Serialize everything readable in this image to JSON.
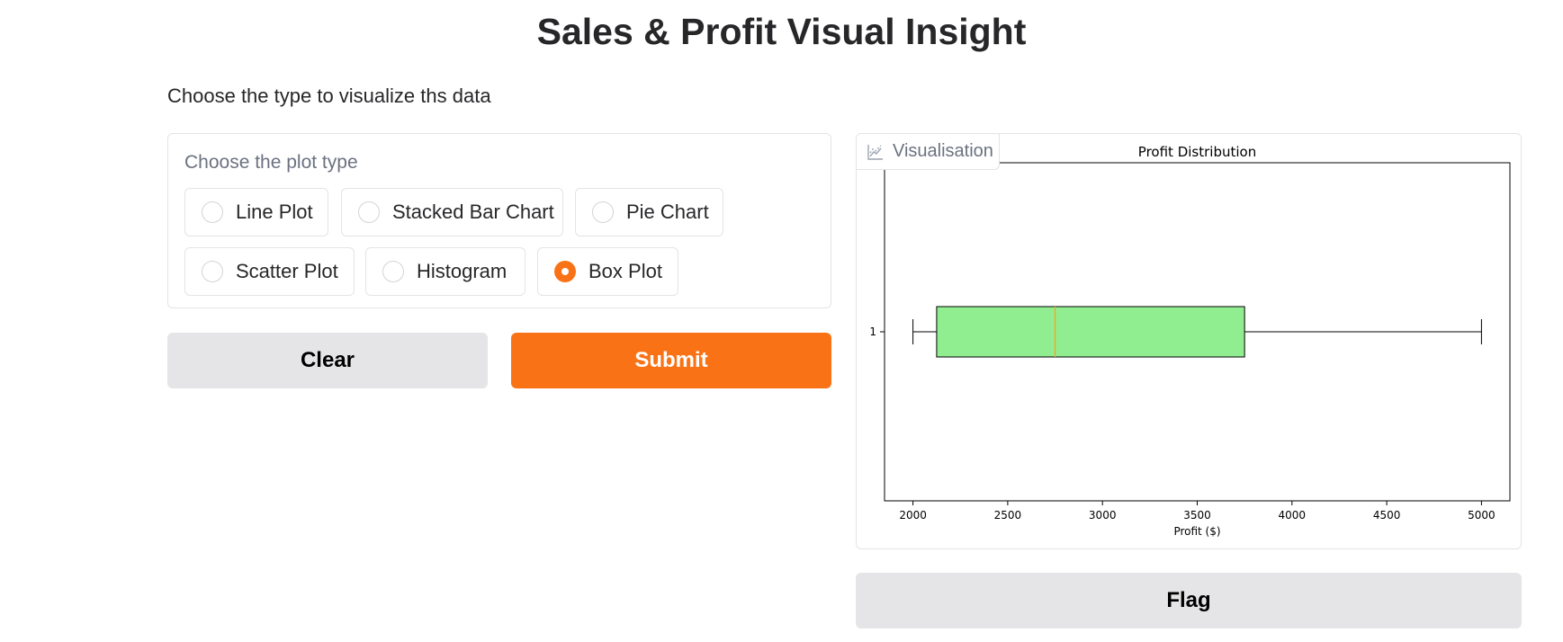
{
  "page": {
    "title": "Sales & Profit Visual Insight",
    "subtitle": "Choose the type to visualize ths data"
  },
  "plot_selector": {
    "label": "Choose the plot type",
    "selected": "Box Plot",
    "options": [
      "Line Plot",
      "Stacked Bar Chart",
      "Pie Chart",
      "Scatter Plot",
      "Histogram",
      "Box Plot"
    ]
  },
  "buttons": {
    "clear": "Clear",
    "submit": "Submit",
    "flag": "Flag"
  },
  "visualisation": {
    "label": "Visualisation",
    "icon": "chart-icon"
  },
  "colors": {
    "accent": "#f97316",
    "box_fill": "#90ee90",
    "median": "#f5a623"
  },
  "chart_data": {
    "type": "box",
    "title": "Profit Distribution",
    "xlabel": "Profit ($)",
    "ylabel": "",
    "orientation": "horizontal",
    "categories": [
      "1"
    ],
    "boxes": [
      {
        "category": "1",
        "min": 2000,
        "q1": 2125,
        "median": 2750,
        "q3": 3750,
        "max": 5000
      }
    ],
    "xlim": [
      1850,
      5150
    ],
    "xticks": [
      2000,
      2500,
      3000,
      3500,
      4000,
      4500,
      5000
    ],
    "grid": false
  }
}
